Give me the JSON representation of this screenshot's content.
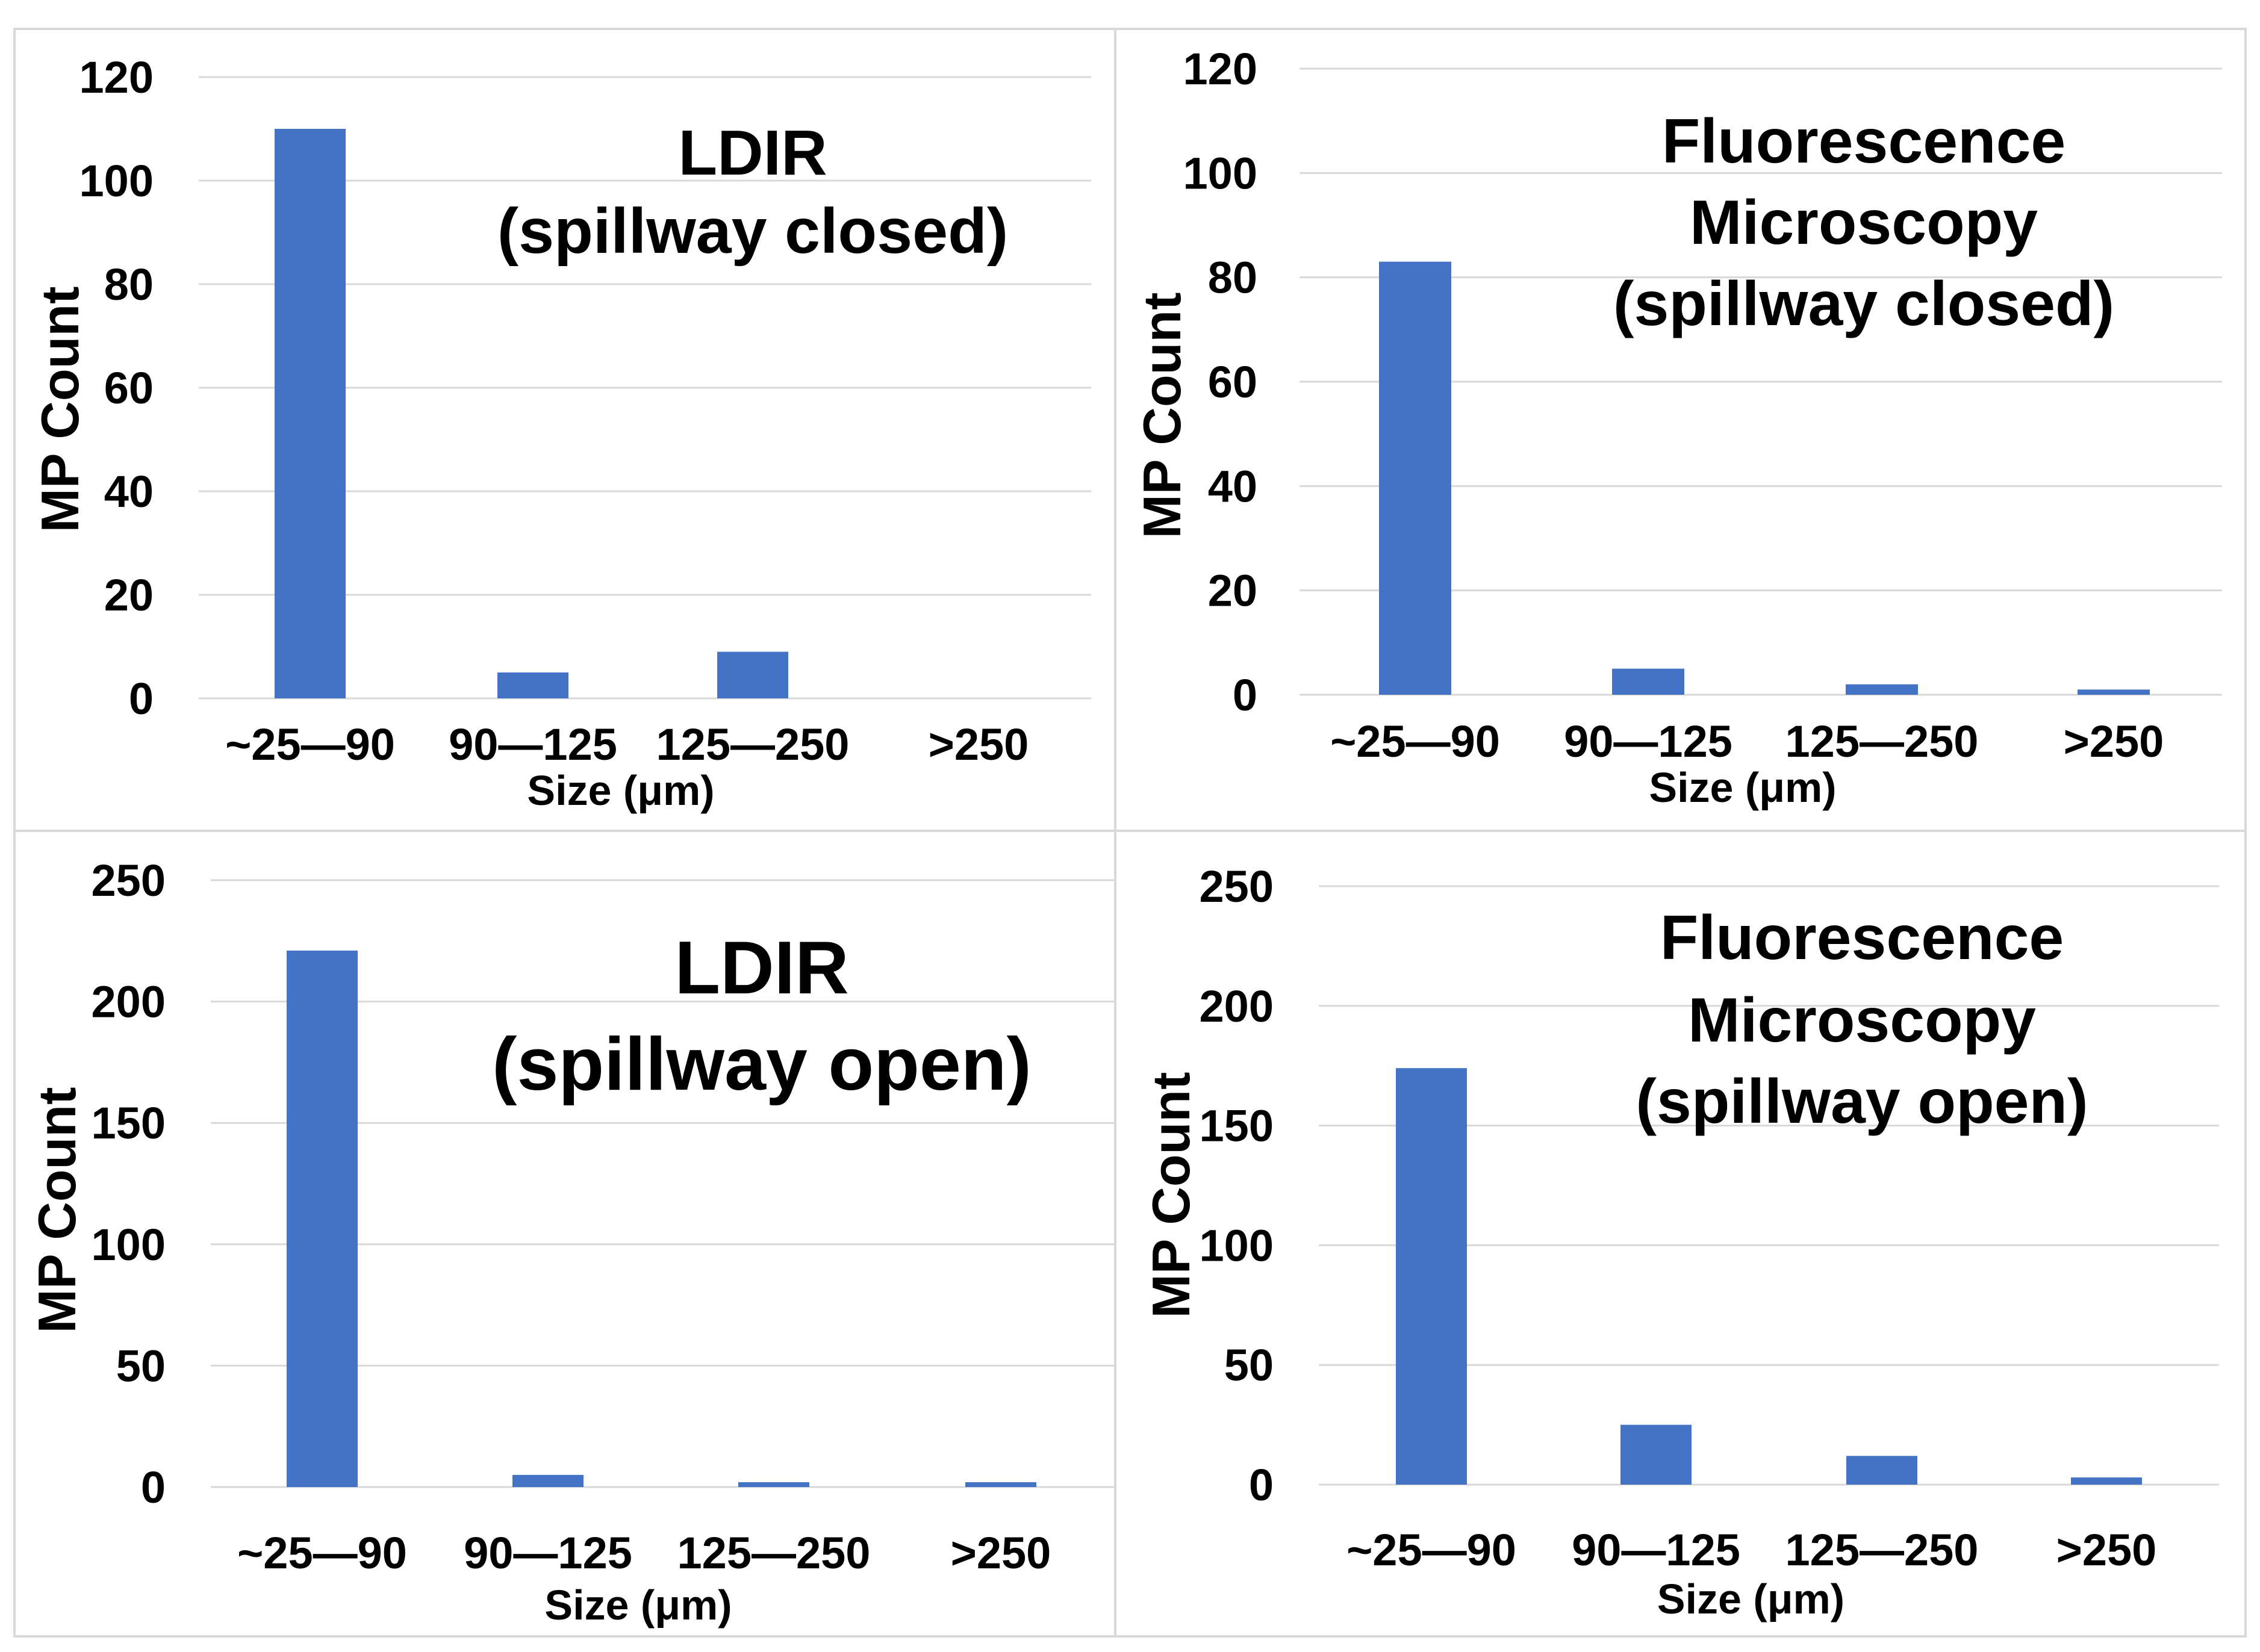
{
  "bar_color": "#4472C4",
  "grid_color": "#D9D9D9",
  "chart_data": [
    {
      "type": "bar",
      "title_lines": [
        "LDIR",
        "(spillway closed)"
      ],
      "categories": [
        "~25—90",
        "90—125",
        "125—250",
        ">250"
      ],
      "values": [
        110,
        5,
        9,
        0
      ],
      "xlabel": "Size (μm)",
      "ylabel": "MP Count",
      "ylim": [
        0,
        120
      ],
      "yticks": [
        0,
        20,
        40,
        60,
        80,
        100,
        120
      ],
      "grid": true
    },
    {
      "type": "bar",
      "title_lines": [
        "Fluorescence",
        "Microscopy",
        "(spillway closed)"
      ],
      "categories": [
        "~25—90",
        "90—125",
        "125—250",
        ">250"
      ],
      "values": [
        83,
        5,
        2,
        1
      ],
      "xlabel": "Size (μm)",
      "ylabel": "MP Count",
      "ylim": [
        0,
        120
      ],
      "yticks": [
        0,
        20,
        40,
        60,
        80,
        100,
        120
      ],
      "grid": true
    },
    {
      "type": "bar",
      "title_lines": [
        "LDIR",
        "(spillway open)"
      ],
      "categories": [
        "~25—90",
        "90—125",
        "125—250",
        ">250"
      ],
      "values": [
        221,
        5,
        2,
        2
      ],
      "xlabel": "Size (μm)",
      "ylabel": "MP Count",
      "ylim": [
        0,
        250
      ],
      "yticks": [
        0,
        50,
        100,
        150,
        200,
        250
      ],
      "grid": true
    },
    {
      "type": "bar",
      "title_lines": [
        "Fluorescence",
        "Microscopy",
        "(spillway open)"
      ],
      "categories": [
        "~25—90",
        "90—125",
        "125—250",
        ">250"
      ],
      "values": [
        174,
        25,
        12,
        3
      ],
      "xlabel": "Size (μm)",
      "ylabel": "MP Count",
      "ylim": [
        0,
        250
      ],
      "yticks": [
        0,
        50,
        100,
        150,
        200,
        250
      ],
      "grid": true
    }
  ]
}
